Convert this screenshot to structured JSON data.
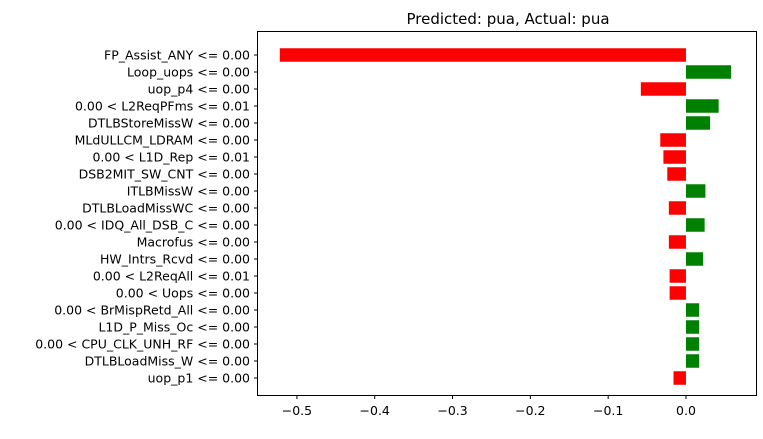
{
  "chart_data": {
    "type": "bar",
    "orientation": "horizontal",
    "title": "Predicted: pua, Actual: pua",
    "xlabel": "",
    "ylabel": "",
    "xlim": [
      -0.55,
      0.09
    ],
    "grid": false,
    "xticks": [
      -0.5,
      -0.4,
      -0.3,
      -0.2,
      -0.1,
      0.0
    ],
    "xtick_labels": [
      "−0.5",
      "−0.4",
      "−0.3",
      "−0.2",
      "−0.1",
      "0.0"
    ],
    "categories": [
      "FP_Assist_ANY <= 0.00",
      "Loop_uops <= 0.00",
      "uop_p4 <= 0.00",
      "0.00 < L2ReqPFms <= 0.01",
      "DTLBStoreMissW <= 0.00",
      "MLdULLCM_LDRAM <= 0.00",
      "0.00 < L1D_Rep <= 0.01",
      "DSB2MIT_SW_CNT <= 0.00",
      "ITLBMissW <= 0.00",
      "DTLBLoadMissWC <= 0.00",
      "0.00 < IDQ_All_DSB_C <= 0.00",
      "Macrofus <= 0.00",
      "HW_Intrs_Rcvd <= 0.00",
      "0.00 < L2ReqAll <= 0.01",
      "0.00 < Uops <= 0.00",
      "0.00 < BrMispRetd_All <= 0.00",
      "L1D_P_Miss_Oc <= 0.00",
      "0.00 < CPU_CLK_UNH_RF <= 0.00",
      "DTLBLoadMiss_W <= 0.00",
      "uop_p1 <= 0.00"
    ],
    "values": [
      -0.522,
      0.058,
      -0.058,
      0.042,
      0.031,
      -0.033,
      -0.029,
      -0.024,
      0.025,
      -0.022,
      0.024,
      -0.022,
      0.022,
      -0.021,
      -0.021,
      0.017,
      0.017,
      0.017,
      0.017,
      -0.016
    ],
    "colors": {
      "positive": "#008000",
      "negative": "#ff0000"
    }
  }
}
